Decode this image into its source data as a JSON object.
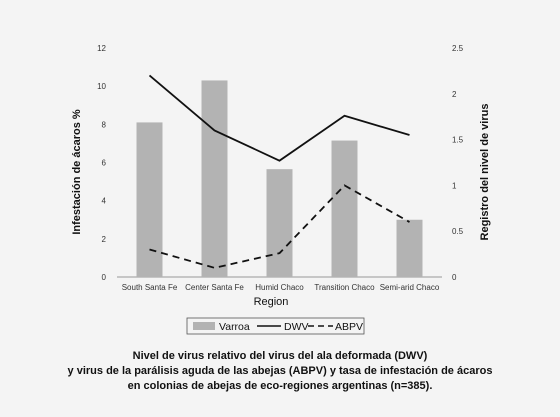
{
  "chart_data": {
    "type": "bar+line",
    "categories": [
      "South Santa Fe",
      "Center Santa Fe",
      "Humid Chaco",
      "Transition Chaco",
      "Semi-arid Chaco"
    ],
    "series": [
      {
        "name": "Varroa",
        "type": "bar",
        "axis": "left",
        "color": "#b3b3b3",
        "values": [
          8.1,
          10.3,
          5.65,
          7.15,
          3.0
        ]
      },
      {
        "name": "DWV",
        "type": "line",
        "axis": "right",
        "style": "solid",
        "color": "#111111",
        "values": [
          2.2,
          1.6,
          1.27,
          1.76,
          1.55
        ]
      },
      {
        "name": "ABPV",
        "type": "line",
        "axis": "right",
        "style": "dashed",
        "color": "#111111",
        "values": [
          0.3,
          0.1,
          0.26,
          1.0,
          0.6
        ]
      }
    ],
    "xlabel": "Region",
    "ylabel": "Infestación de ácaros %",
    "y2label": "Registro del nivel de virus",
    "ylim": [
      0,
      12
    ],
    "y2lim": [
      0,
      2.5
    ],
    "yticks": [
      "0",
      "2",
      "4",
      "6",
      "8",
      "10",
      "12"
    ],
    "y2ticks": [
      "0",
      "0.5",
      "1",
      "1.5",
      "2",
      "2.5"
    ],
    "grid": false,
    "legend_position": "bottom"
  },
  "caption": [
    "Nivel de virus relativo del virus del ala deformada (DWV)",
    "y virus de la parálisis aguda de las abejas (ABPV) y tasa de infestación de ácaros",
    "en colonias de abejas de eco-regiones argentinas (n=385)."
  ]
}
